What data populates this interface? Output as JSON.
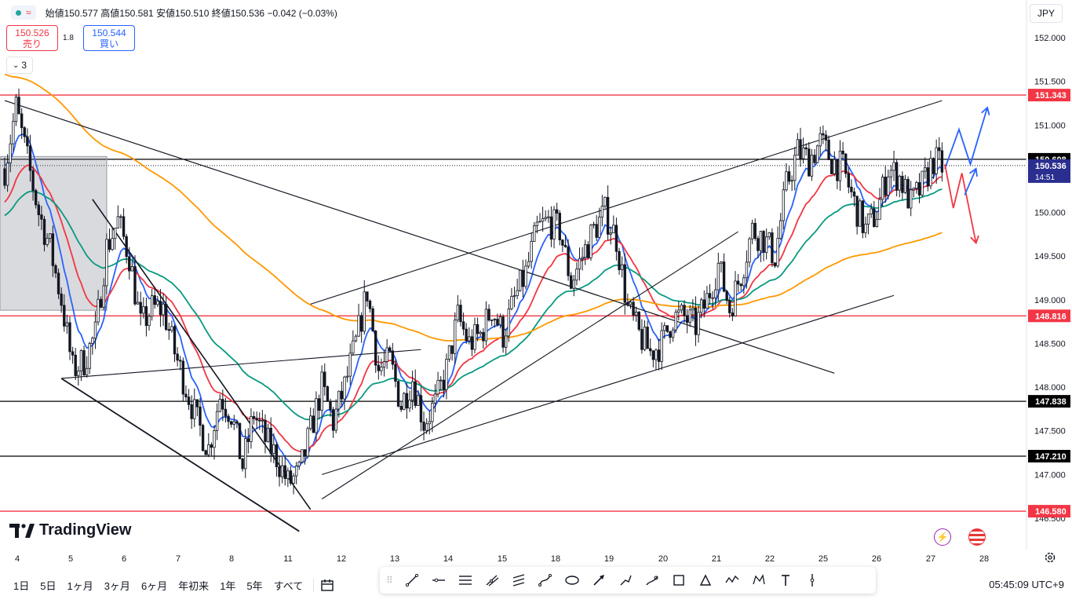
{
  "header": {
    "ohlc_text": "始値150.577 高値150.581 安値150.510 終値150.536 −0.042 (−0.03%)",
    "currency": "JPY"
  },
  "trade": {
    "sell_price": "150.526",
    "sell_label": "売り",
    "spread": "1.8",
    "buy_price": "150.544",
    "buy_label": "買い"
  },
  "indicator_count": "3",
  "logo_text": "TradingView",
  "bottom": {
    "ranges": [
      "1日",
      "5日",
      "1ヶ月",
      "3ヶ月",
      "6ヶ月",
      "年初来",
      "1年",
      "5年",
      "すべて"
    ],
    "clock": "05:45:09 UTC+9"
  },
  "colors": {
    "up": "#26a69a",
    "down": "#f23645",
    "accent": "#2962ff",
    "ma_fast": "#2962ff",
    "ma_mid": "#f23645",
    "ma_slow": "#089981",
    "ma_long": "#ff9800",
    "hline_red": "#f23645",
    "hline_black": "#000000",
    "price_badge": "#2a2e8f"
  },
  "tools": [
    "trend-line",
    "horizontal-ray",
    "parallel-channel",
    "pitchfork",
    "fib-retracement",
    "path",
    "ellipse",
    "arrow",
    "brush",
    "highlighter",
    "rectangle",
    "triangle",
    "polyline",
    "pattern",
    "text",
    "vertical-line"
  ],
  "chart_data": {
    "type": "candlestick",
    "instrument_currency": "JPY",
    "y_axis": {
      "ticks": [
        "146.500",
        "147.000",
        "147.500",
        "148.000",
        "148.500",
        "149.000",
        "149.500",
        "150.000",
        "150.500",
        "151.000",
        "151.500",
        "152.000"
      ],
      "range": [
        146.4,
        152.05
      ]
    },
    "x_axis": {
      "ticks": [
        "4",
        "5",
        "6",
        "7",
        "8",
        "11",
        "12",
        "13",
        "14",
        "15",
        "18",
        "19",
        "20",
        "21",
        "22",
        "25",
        "26",
        "27",
        "28"
      ]
    },
    "price_labels": [
      {
        "text": "151.343",
        "price": 151.343,
        "style": "red"
      },
      {
        "text": "150.608",
        "price": 150.608,
        "style": "black"
      },
      {
        "text": "148.816",
        "price": 148.816,
        "style": "red"
      },
      {
        "text": "147.838",
        "price": 147.838,
        "style": "black"
      },
      {
        "text": "147.210",
        "price": 147.21,
        "style": "black"
      },
      {
        "text": "146.580",
        "price": 146.58,
        "style": "red"
      }
    ],
    "last_price": {
      "text": "150.536",
      "countdown": "14:51",
      "price": 150.536
    },
    "horizontal_lines": [
      {
        "price": 151.343,
        "color": "red"
      },
      {
        "price": 150.608,
        "color": "black"
      },
      {
        "price": 148.816,
        "color": "red"
      },
      {
        "price": 147.838,
        "color": "black"
      },
      {
        "price": 147.21,
        "color": "black"
      },
      {
        "price": 146.58,
        "color": "red"
      }
    ],
    "close_path": [
      [
        0,
        150.5
      ],
      [
        4,
        151.2
      ],
      [
        8,
        150.6
      ],
      [
        12,
        150.0
      ],
      [
        16,
        149.6
      ],
      [
        20,
        149.0
      ],
      [
        24,
        148.2
      ],
      [
        28,
        148.3
      ],
      [
        32,
        148.6
      ],
      [
        36,
        149.6
      ],
      [
        40,
        149.9
      ],
      [
        44,
        149.5
      ],
      [
        48,
        148.7
      ],
      [
        52,
        148.9
      ],
      [
        56,
        148.9
      ],
      [
        60,
        148.4
      ],
      [
        64,
        148.0
      ],
      [
        68,
        147.6
      ],
      [
        72,
        147.3
      ],
      [
        76,
        147.9
      ],
      [
        80,
        147.7
      ],
      [
        84,
        147.1
      ],
      [
        88,
        147.7
      ],
      [
        92,
        147.4
      ],
      [
        96,
        147.2
      ],
      [
        100,
        146.9
      ],
      [
        104,
        147.0
      ],
      [
        108,
        147.5
      ],
      [
        112,
        148.0
      ],
      [
        116,
        147.6
      ],
      [
        120,
        148.0
      ],
      [
        124,
        148.5
      ],
      [
        128,
        149.1
      ],
      [
        132,
        148.2
      ],
      [
        136,
        148.3
      ],
      [
        140,
        147.8
      ],
      [
        144,
        148.1
      ],
      [
        148,
        147.6
      ],
      [
        152,
        147.8
      ],
      [
        156,
        148.2
      ],
      [
        160,
        148.8
      ],
      [
        164,
        148.5
      ],
      [
        168,
        148.6
      ],
      [
        172,
        148.9
      ],
      [
        176,
        148.6
      ],
      [
        180,
        149.0
      ],
      [
        184,
        149.3
      ],
      [
        188,
        149.8
      ],
      [
        192,
        149.9
      ],
      [
        196,
        149.8
      ],
      [
        200,
        149.2
      ],
      [
        204,
        149.5
      ],
      [
        208,
        149.8
      ],
      [
        212,
        150.0
      ],
      [
        216,
        149.7
      ],
      [
        220,
        148.9
      ],
      [
        224,
        148.6
      ],
      [
        228,
        148.4
      ],
      [
        232,
        148.5
      ],
      [
        236,
        148.8
      ],
      [
        240,
        148.8
      ],
      [
        244,
        148.7
      ],
      [
        248,
        149.0
      ],
      [
        252,
        149.4
      ],
      [
        256,
        148.9
      ],
      [
        260,
        149.3
      ],
      [
        264,
        149.8
      ],
      [
        268,
        149.7
      ],
      [
        272,
        149.5
      ],
      [
        276,
        150.3
      ],
      [
        280,
        150.7
      ],
      [
        284,
        150.6
      ],
      [
        288,
        150.8
      ],
      [
        292,
        150.6
      ],
      [
        296,
        150.5
      ],
      [
        300,
        150.1
      ],
      [
        304,
        149.8
      ],
      [
        308,
        150.0
      ],
      [
        312,
        150.5
      ],
      [
        316,
        150.4
      ],
      [
        320,
        150.1
      ],
      [
        324,
        150.3
      ],
      [
        328,
        150.6
      ],
      [
        332,
        150.5
      ]
    ],
    "moving_averages": [
      {
        "color": "blue"
      },
      {
        "color": "red"
      },
      {
        "color": "green"
      },
      {
        "color": "orange"
      }
    ]
  }
}
